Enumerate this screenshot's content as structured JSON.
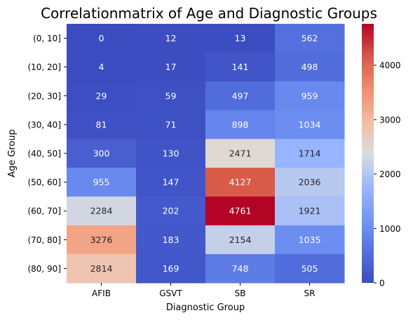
{
  "chart_data": {
    "type": "heatmap",
    "title": "Correlationmatrix of Age and Diagnostic Groups",
    "xlabel": "Diagnostic Group",
    "ylabel": "Age Group",
    "x_categories": [
      "AFIB",
      "GSVT",
      "SB",
      "SR"
    ],
    "y_categories": [
      "(0, 10]",
      "(10, 20]",
      "(20, 30]",
      "(30, 40]",
      "(40, 50]",
      "(50, 60]",
      "(60, 70]",
      "(70, 80]",
      "(80, 90]"
    ],
    "values": [
      [
        0,
        12,
        13,
        562
      ],
      [
        4,
        17,
        141,
        498
      ],
      [
        29,
        59,
        497,
        959
      ],
      [
        81,
        71,
        898,
        1034
      ],
      [
        300,
        130,
        2471,
        1714
      ],
      [
        955,
        147,
        4127,
        2036
      ],
      [
        2284,
        202,
        4761,
        1921
      ],
      [
        3276,
        183,
        2154,
        1035
      ],
      [
        2814,
        169,
        748,
        505
      ]
    ],
    "colormap": "coolwarm",
    "vmin": 0,
    "vmax": 4761,
    "colorbar_ticks": [
      0,
      1000,
      2000,
      3000,
      4000
    ]
  }
}
